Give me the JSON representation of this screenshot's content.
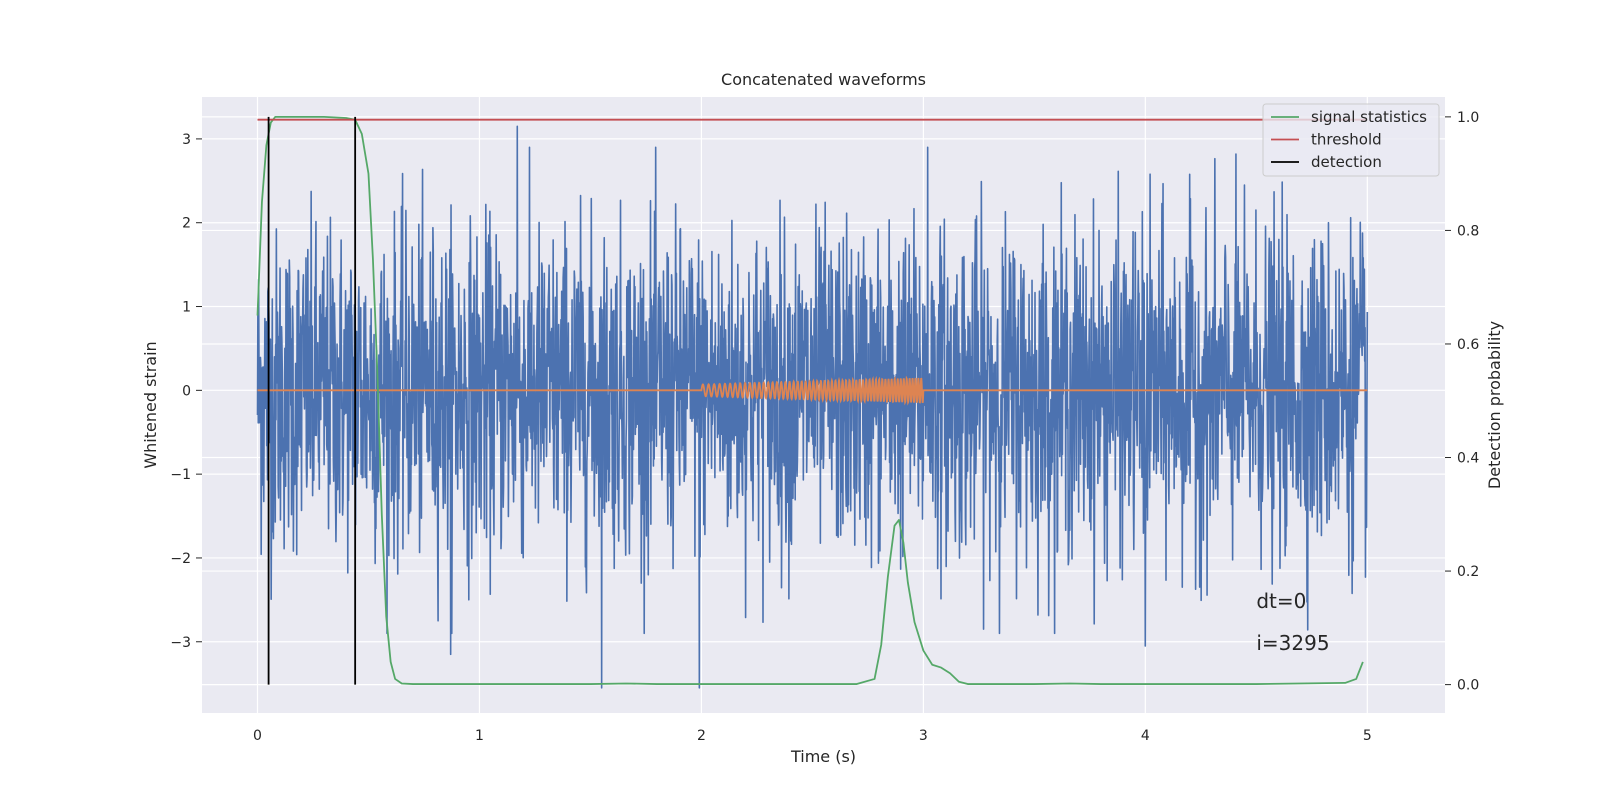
{
  "chart_data": {
    "type": "line",
    "title": "Concatenated waveforms",
    "xlabel": "Time (s)",
    "ylabel_left": "Whitened strain",
    "ylabel_right": "Detection probability",
    "xlim": [
      -0.25,
      5.35
    ],
    "ylim_left": [
      -3.85,
      3.5
    ],
    "ylim_right": [
      -0.05,
      1.035
    ],
    "grid": true,
    "legend_position": "top-right",
    "x_ticks": [
      0,
      1,
      2,
      3,
      4,
      5
    ],
    "x_tick_labels": [
      "0",
      "1",
      "2",
      "3",
      "4",
      "5"
    ],
    "y_left_ticks": [
      -3,
      -2,
      -1,
      0,
      1,
      2,
      3
    ],
    "y_left_tick_labels": [
      "−3",
      "−2",
      "−1",
      "0",
      "1",
      "2",
      "3"
    ],
    "y_right_ticks": [
      0.0,
      0.2,
      0.4,
      0.6,
      0.8,
      1.0
    ],
    "y_right_tick_labels": [
      "0.0",
      "0.2",
      "0.4",
      "0.6",
      "0.8",
      "1.0"
    ],
    "series": [
      {
        "name": "",
        "axis": "left",
        "color": "#4c72b0",
        "kind": "whitened noise",
        "x_range": [
          0,
          5
        ],
        "amplitude_envelope": 2.9,
        "peaks": [
          {
            "x": 1.17,
            "y": 3.15
          },
          {
            "x": 0.87,
            "y": -3.15
          },
          {
            "x": 1.55,
            "y": -3.55
          },
          {
            "x": 1.99,
            "y": -3.55
          },
          {
            "x": 4.0,
            "y": -3.05
          },
          {
            "x": 3.02,
            "y": 2.9
          }
        ]
      },
      {
        "name": "",
        "axis": "left",
        "color": "#dd8452",
        "kind": "injected chirp",
        "baseline": 0,
        "chirp_x_range": [
          2.0,
          3.0
        ],
        "chirp_amplitude_start": 0.07,
        "chirp_amplitude_end": 0.15
      },
      {
        "name": "signal statistics",
        "axis": "right",
        "color": "#55a868",
        "x": [
          0,
          0.02,
          0.04,
          0.06,
          0.08,
          0.1,
          0.2,
          0.3,
          0.4,
          0.44,
          0.47,
          0.5,
          0.52,
          0.54,
          0.56,
          0.58,
          0.6,
          0.62,
          0.65,
          0.7,
          1.0,
          1.5,
          1.66,
          1.8,
          2.2,
          2.7,
          2.78,
          2.81,
          2.84,
          2.87,
          2.89,
          2.91,
          2.93,
          2.96,
          3.0,
          3.04,
          3.08,
          3.12,
          3.16,
          3.2,
          3.5,
          3.66,
          3.8,
          4.5,
          4.9,
          4.95,
          4.98
        ],
        "y": [
          0.65,
          0.85,
          0.95,
          0.99,
          1.0,
          1.0,
          1.0,
          1.0,
          0.998,
          0.995,
          0.97,
          0.9,
          0.75,
          0.55,
          0.3,
          0.12,
          0.04,
          0.01,
          0.002,
          0.001,
          0.001,
          0.001,
          0.002,
          0.001,
          0.001,
          0.001,
          0.01,
          0.07,
          0.19,
          0.28,
          0.29,
          0.25,
          0.18,
          0.11,
          0.06,
          0.035,
          0.03,
          0.02,
          0.005,
          0.001,
          0.001,
          0.002,
          0.001,
          0.001,
          0.003,
          0.01,
          0.04
        ]
      },
      {
        "name": "threshold",
        "axis": "right",
        "color": "#c44e52",
        "x": [
          0,
          5
        ],
        "y": [
          0.995,
          0.995
        ]
      },
      {
        "name": "detection",
        "axis": "right",
        "color": "#000000",
        "vlines": [
          0.05,
          0.44
        ],
        "y_range": [
          0,
          1.0
        ]
      }
    ],
    "annotations": [
      {
        "text": "dt=0",
        "x": 4.5,
        "y": -2.6
      },
      {
        "text": "i=3295",
        "x": 4.5,
        "y": -3.1
      }
    ]
  }
}
